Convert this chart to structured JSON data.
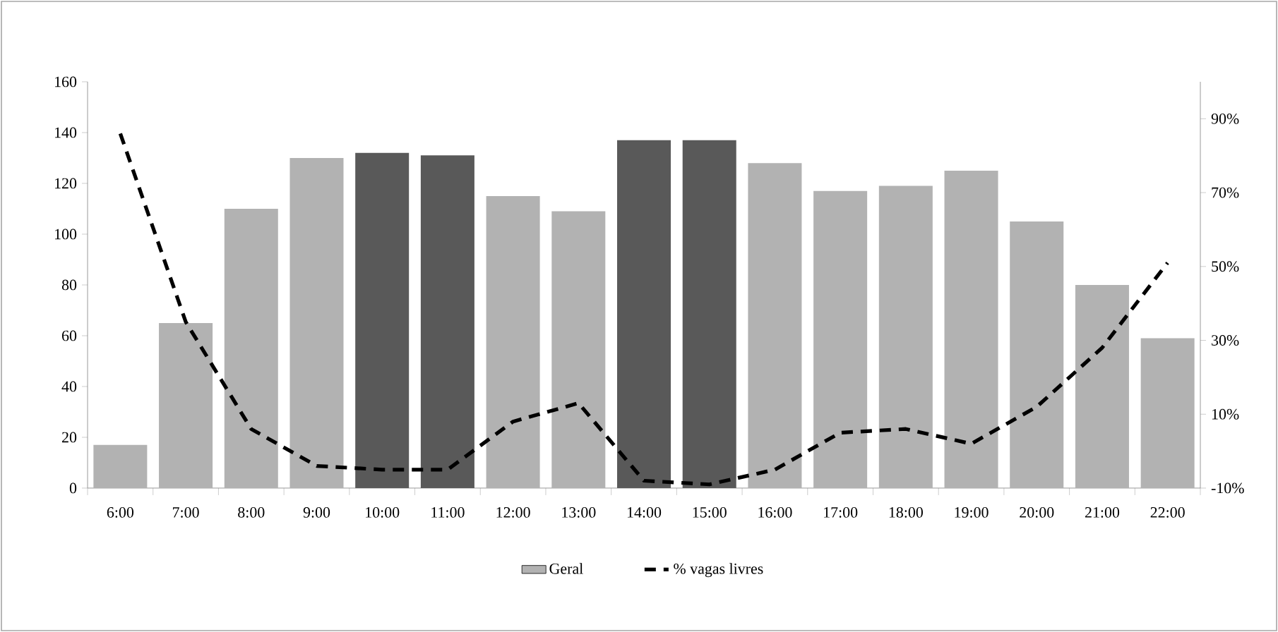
{
  "chart_data": {
    "type": "bar",
    "categories": [
      "6:00",
      "7:00",
      "8:00",
      "9:00",
      "10:00",
      "11:00",
      "12:00",
      "13:00",
      "14:00",
      "15:00",
      "16:00",
      "17:00",
      "18:00",
      "19:00",
      "20:00",
      "21:00",
      "22:00"
    ],
    "series": [
      {
        "name": "Geral",
        "color": "#b2b2b2",
        "colors": [
          "#b2b2b2",
          "#b2b2b2",
          "#b2b2b2",
          "#b2b2b2",
          "#595959",
          "#595959",
          "#b2b2b2",
          "#b2b2b2",
          "#595959",
          "#595959",
          "#b2b2b2",
          "#b2b2b2",
          "#b2b2b2",
          "#b2b2b2",
          "#b2b2b2",
          "#b2b2b2",
          "#b2b2b2"
        ],
        "values": [
          17,
          65,
          110,
          130,
          132,
          131,
          115,
          109,
          137,
          137,
          128,
          117,
          119,
          125,
          105,
          80,
          59
        ]
      },
      {
        "name": "% vagas livres",
        "type": "line",
        "axis": "y2",
        "color": "#000000",
        "line_style": "dashed",
        "marker": "none",
        "values": [
          86,
          35,
          6,
          -4,
          -5,
          -5,
          8,
          13,
          -8,
          -9,
          -5,
          5,
          6,
          2,
          12,
          28,
          51
        ]
      }
    ],
    "ylim": [
      0,
      160
    ],
    "yticks": [
      0,
      20,
      40,
      60,
      80,
      100,
      120,
      140,
      160
    ],
    "y2lim": [
      -10,
      100
    ],
    "y2ticks": [
      {
        "value": -10,
        "label": "-10%"
      },
      {
        "value": 10,
        "label": "10%"
      },
      {
        "value": 30,
        "label": "30%"
      },
      {
        "value": 50,
        "label": "50%"
      },
      {
        "value": 70,
        "label": "70%"
      },
      {
        "value": 90,
        "label": "90%"
      }
    ],
    "grid": false,
    "legend": "bottom"
  }
}
